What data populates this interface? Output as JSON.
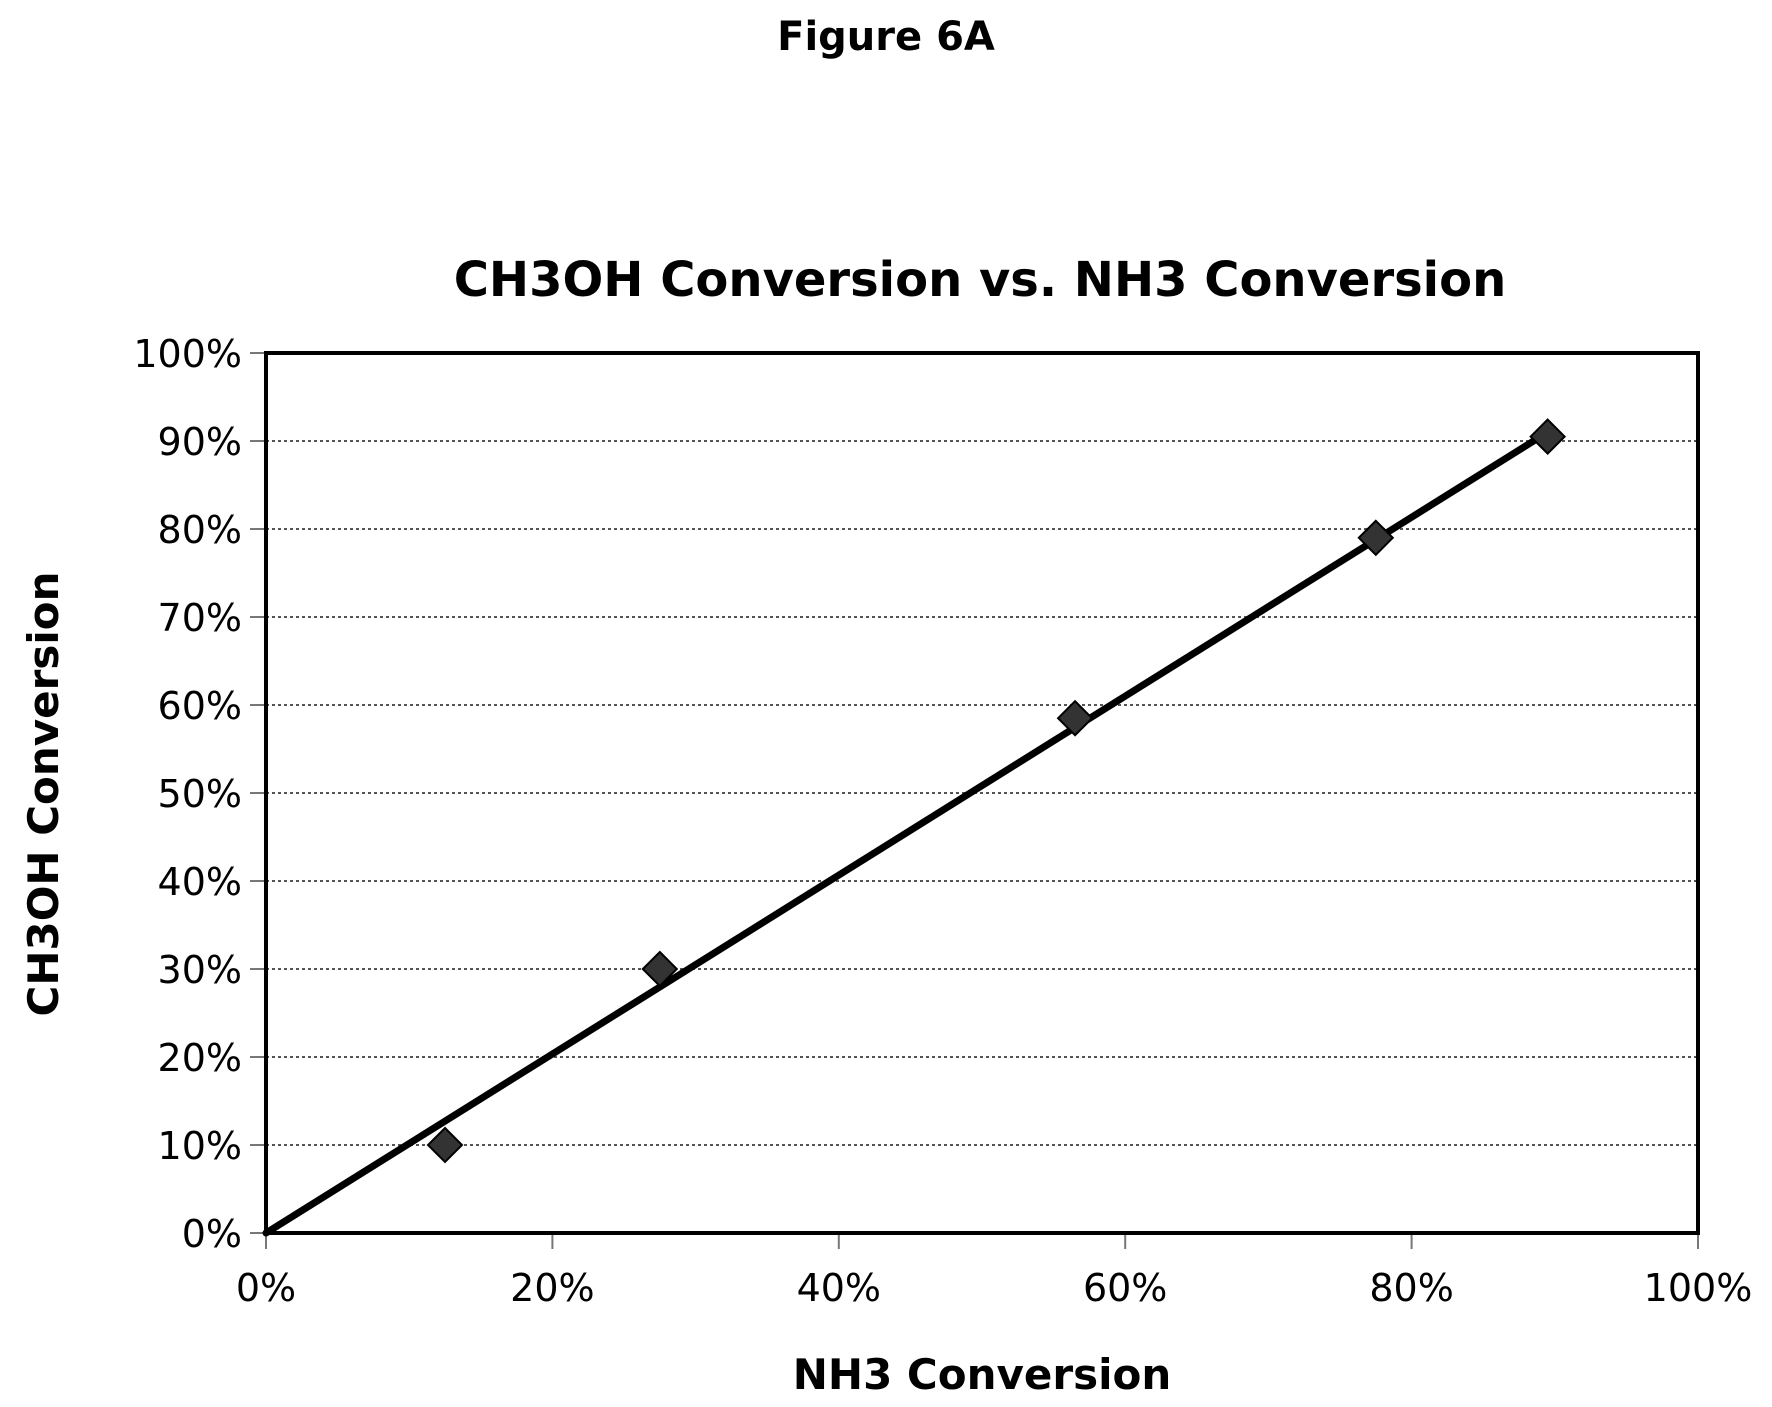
{
  "figure_label": "Figure 6A",
  "chart_data": {
    "type": "scatter",
    "title": "CH3OH Conversion vs. NH3 Conversion",
    "xlabel": "NH3 Conversion",
    "ylabel": "CH3OH Conversion",
    "xlim": [
      0,
      100
    ],
    "ylim": [
      0,
      100
    ],
    "x_ticks": [
      "0%",
      "20%",
      "40%",
      "60%",
      "80%",
      "100%"
    ],
    "y_ticks": [
      "0%",
      "10%",
      "20%",
      "30%",
      "40%",
      "50%",
      "60%",
      "70%",
      "80%",
      "90%",
      "100%"
    ],
    "grid": "horizontal dotted",
    "series": [
      {
        "marker": "diamond",
        "x": [
          12.5,
          27.5,
          56.5,
          77.5,
          89.5
        ],
        "y": [
          10,
          30,
          58.5,
          79,
          90.5
        ]
      }
    ],
    "trendline": {
      "type": "linear",
      "x": [
        0,
        89.5
      ],
      "y": [
        0,
        91
      ]
    },
    "colors": {
      "marker": "#333333",
      "line": "#000000",
      "grid": "#555555"
    }
  }
}
